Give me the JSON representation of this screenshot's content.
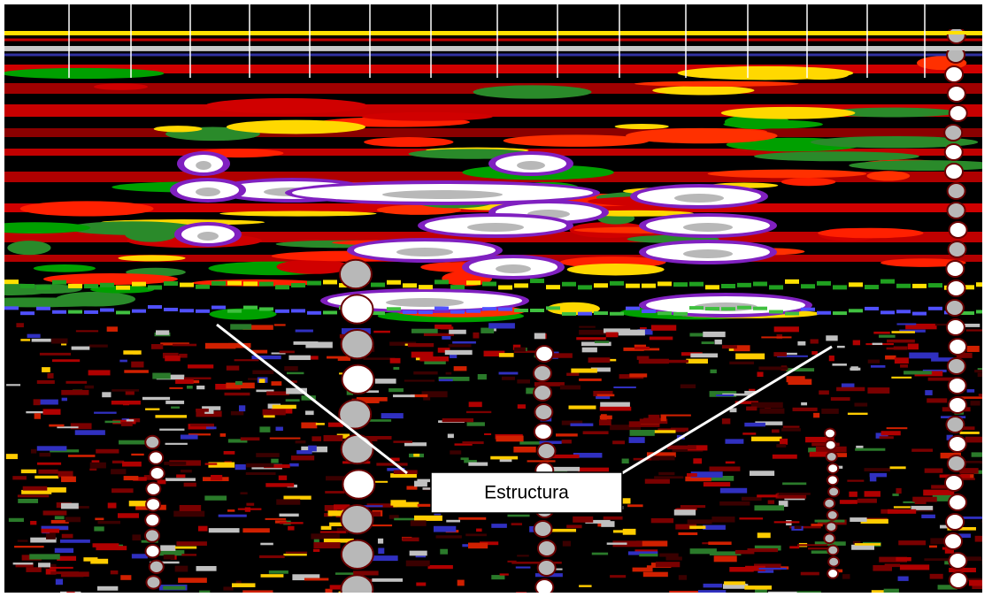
{
  "annotation": {
    "label": "Estructura"
  }
}
